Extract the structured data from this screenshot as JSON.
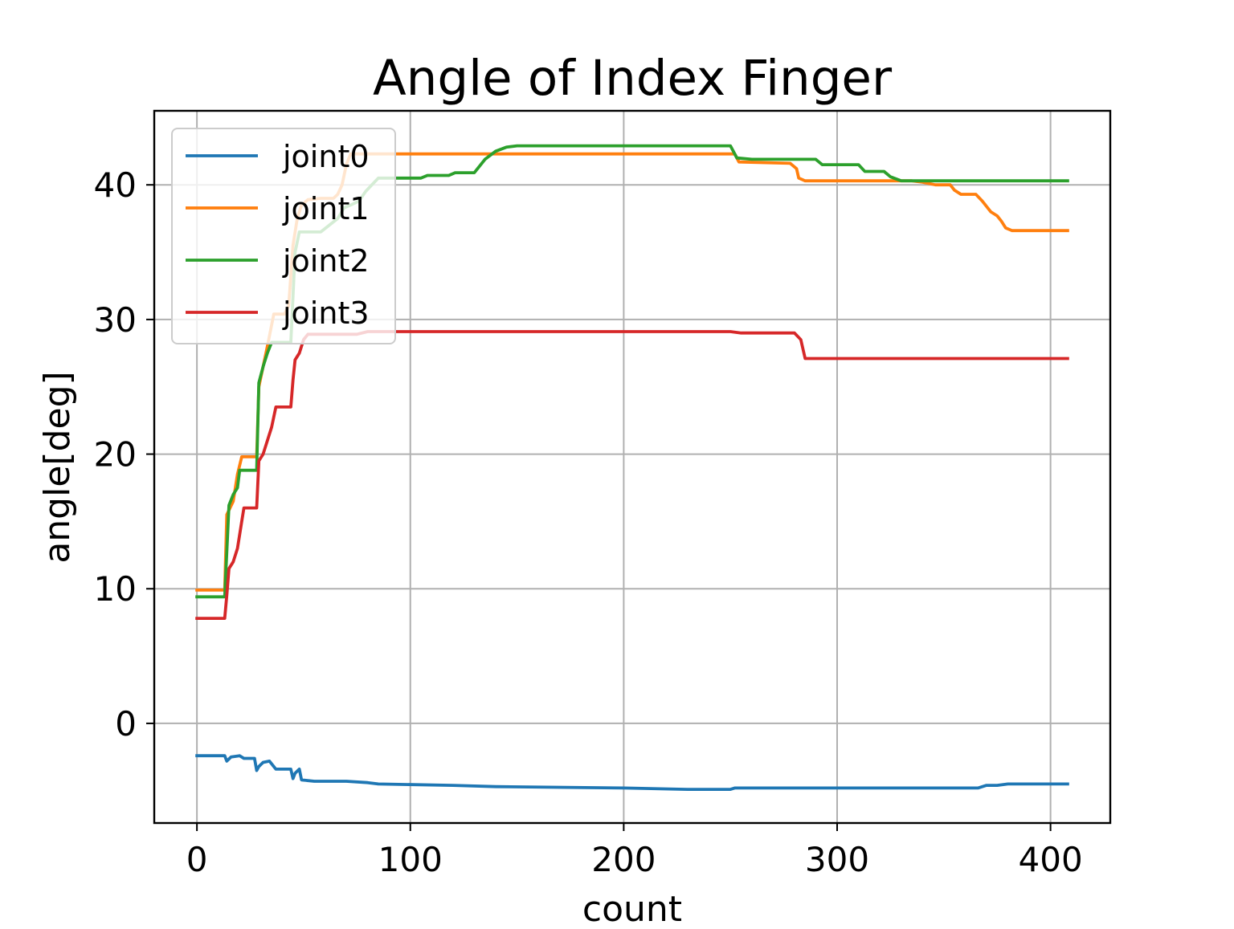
{
  "chart_data": {
    "type": "line",
    "title": "Angle of Index Finger",
    "xlabel": "count",
    "ylabel": "angle[deg]",
    "xlim": [
      -20,
      428
    ],
    "ylim": [
      -7.4,
      45.5
    ],
    "xticks": [
      0,
      100,
      200,
      300,
      400
    ],
    "yticks": [
      0,
      10,
      20,
      30,
      40
    ],
    "grid": true,
    "legend_position": "top-left",
    "series": [
      {
        "name": "joint0",
        "color": "#1f77b4",
        "points": [
          [
            0,
            -2.4
          ],
          [
            13,
            -2.4
          ],
          [
            14,
            -2.8
          ],
          [
            16,
            -2.5
          ],
          [
            20,
            -2.4
          ],
          [
            22,
            -2.6
          ],
          [
            27,
            -2.6
          ],
          [
            28,
            -3.5
          ],
          [
            29,
            -3.2
          ],
          [
            31,
            -2.9
          ],
          [
            34,
            -2.8
          ],
          [
            37,
            -3.4
          ],
          [
            44,
            -3.4
          ],
          [
            45,
            -4.1
          ],
          [
            46,
            -3.7
          ],
          [
            48,
            -3.4
          ],
          [
            49,
            -4.2
          ],
          [
            55,
            -4.3
          ],
          [
            70,
            -4.3
          ],
          [
            80,
            -4.4
          ],
          [
            85,
            -4.5
          ],
          [
            120,
            -4.6
          ],
          [
            140,
            -4.7
          ],
          [
            200,
            -4.8
          ],
          [
            230,
            -4.9
          ],
          [
            250,
            -4.9
          ],
          [
            252,
            -4.8
          ],
          [
            280,
            -4.8
          ],
          [
            300,
            -4.8
          ],
          [
            360,
            -4.8
          ],
          [
            366,
            -4.8
          ],
          [
            370,
            -4.6
          ],
          [
            375,
            -4.6
          ],
          [
            380,
            -4.5
          ],
          [
            400,
            -4.5
          ],
          [
            408,
            -4.5
          ]
        ]
      },
      {
        "name": "joint1",
        "color": "#ff7f0e",
        "points": [
          [
            0,
            9.9
          ],
          [
            13,
            9.9
          ],
          [
            14,
            15.5
          ],
          [
            17,
            16.5
          ],
          [
            19,
            18.5
          ],
          [
            21,
            19.8
          ],
          [
            28,
            19.8
          ],
          [
            29,
            25.0
          ],
          [
            31,
            26.5
          ],
          [
            33,
            28.0
          ],
          [
            36,
            30.4
          ],
          [
            41,
            30.4
          ],
          [
            43,
            31.0
          ],
          [
            45,
            35.5
          ],
          [
            47,
            37.5
          ],
          [
            49,
            38.5
          ],
          [
            52,
            38.9
          ],
          [
            58,
            39.0
          ],
          [
            64,
            39.0
          ],
          [
            66,
            39.3
          ],
          [
            68,
            40.0
          ],
          [
            70,
            41.5
          ],
          [
            72,
            42.3
          ],
          [
            252,
            42.3
          ],
          [
            254,
            41.7
          ],
          [
            278,
            41.6
          ],
          [
            281,
            41.2
          ],
          [
            282,
            40.5
          ],
          [
            285,
            40.3
          ],
          [
            335,
            40.3
          ],
          [
            340,
            40.2
          ],
          [
            346,
            40.0
          ],
          [
            353,
            40.0
          ],
          [
            355,
            39.6
          ],
          [
            358,
            39.3
          ],
          [
            365,
            39.3
          ],
          [
            368,
            38.8
          ],
          [
            370,
            38.4
          ],
          [
            372,
            38.0
          ],
          [
            375,
            37.7
          ],
          [
            377,
            37.3
          ],
          [
            379,
            36.8
          ],
          [
            382,
            36.6
          ],
          [
            408,
            36.6
          ]
        ]
      },
      {
        "name": "joint2",
        "color": "#2ca02c",
        "points": [
          [
            0,
            9.4
          ],
          [
            13,
            9.4
          ],
          [
            15,
            16.2
          ],
          [
            17,
            17.0
          ],
          [
            19,
            17.5
          ],
          [
            20,
            18.8
          ],
          [
            28,
            18.8
          ],
          [
            29,
            25.3
          ],
          [
            31,
            26.5
          ],
          [
            33,
            27.5
          ],
          [
            35,
            28.3
          ],
          [
            44,
            28.3
          ],
          [
            46,
            35.0
          ],
          [
            48,
            36.5
          ],
          [
            58,
            36.5
          ],
          [
            62,
            37.0
          ],
          [
            66,
            37.5
          ],
          [
            69,
            38.3
          ],
          [
            72,
            38.5
          ],
          [
            76,
            38.8
          ],
          [
            79,
            39.5
          ],
          [
            82,
            40.0
          ],
          [
            85,
            40.5
          ],
          [
            105,
            40.5
          ],
          [
            108,
            40.7
          ],
          [
            118,
            40.7
          ],
          [
            121,
            40.9
          ],
          [
            130,
            40.9
          ],
          [
            133,
            41.5
          ],
          [
            135,
            41.9
          ],
          [
            140,
            42.5
          ],
          [
            145,
            42.8
          ],
          [
            150,
            42.9
          ],
          [
            250,
            42.9
          ],
          [
            253,
            42.0
          ],
          [
            260,
            41.9
          ],
          [
            290,
            41.9
          ],
          [
            293,
            41.5
          ],
          [
            310,
            41.5
          ],
          [
            313,
            41.0
          ],
          [
            322,
            41.0
          ],
          [
            325,
            40.6
          ],
          [
            330,
            40.3
          ],
          [
            360,
            40.3
          ],
          [
            408,
            40.3
          ]
        ]
      },
      {
        "name": "joint3",
        "color": "#d62728",
        "points": [
          [
            0,
            7.8
          ],
          [
            13,
            7.8
          ],
          [
            14,
            9.5
          ],
          [
            15,
            11.5
          ],
          [
            17,
            12.0
          ],
          [
            19,
            13.0
          ],
          [
            21,
            15.0
          ],
          [
            22,
            16.0
          ],
          [
            28,
            16.0
          ],
          [
            29,
            19.5
          ],
          [
            31,
            20.0
          ],
          [
            33,
            21.0
          ],
          [
            35,
            22.0
          ],
          [
            37,
            23.5
          ],
          [
            44,
            23.5
          ],
          [
            45,
            25.5
          ],
          [
            46,
            27.0
          ],
          [
            48,
            27.5
          ],
          [
            50,
            28.5
          ],
          [
            52,
            28.9
          ],
          [
            60,
            28.9
          ],
          [
            75,
            28.9
          ],
          [
            80,
            29.1
          ],
          [
            150,
            29.1
          ],
          [
            250,
            29.1
          ],
          [
            255,
            29.0
          ],
          [
            280,
            29.0
          ],
          [
            283,
            28.5
          ],
          [
            285,
            27.1
          ],
          [
            290,
            27.1
          ],
          [
            408,
            27.1
          ]
        ]
      }
    ]
  }
}
